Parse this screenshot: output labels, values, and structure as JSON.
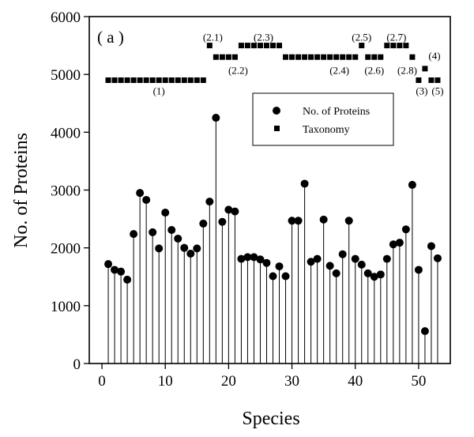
{
  "chart_data": {
    "type": "scatter",
    "panel_label": "( a )",
    "xlabel": "Species",
    "ylabel": "No. of Proteins",
    "xlim": [
      -2,
      55
    ],
    "ylim": [
      0,
      6000
    ],
    "x_ticks": [
      0,
      10,
      20,
      30,
      40,
      50
    ],
    "y_ticks": [
      0,
      1000,
      2000,
      3000,
      4000,
      5000,
      6000
    ],
    "x_tick_labels": [
      "0",
      "10",
      "20",
      "30",
      "40",
      "50"
    ],
    "y_tick_labels": [
      "0",
      "1000",
      "2000",
      "3000",
      "4000",
      "5000",
      "6000"
    ],
    "grid": false,
    "legend_position": "upper-right",
    "series": [
      {
        "name": "No. of Proteins",
        "marker": "circle",
        "style": "stem",
        "x": [
          1,
          2,
          3,
          4,
          5,
          6,
          7,
          8,
          9,
          10,
          11,
          12,
          13,
          14,
          15,
          16,
          17,
          18,
          19,
          20,
          21,
          22,
          23,
          24,
          25,
          26,
          27,
          28,
          29,
          30,
          31,
          32,
          33,
          34,
          35,
          36,
          37,
          38,
          39,
          40,
          41,
          42,
          43,
          44,
          45,
          46,
          47,
          48,
          49,
          50,
          51,
          52,
          53
        ],
        "values": [
          1720,
          1620,
          1590,
          1450,
          2240,
          2950,
          2830,
          2270,
          1990,
          2610,
          2310,
          2160,
          2000,
          1900,
          1990,
          2420,
          2800,
          4250,
          2450,
          2660,
          2630,
          1810,
          1840,
          1840,
          1800,
          1740,
          1510,
          1680,
          1510,
          2470,
          2470,
          3110,
          1760,
          1810,
          2490,
          1690,
          1560,
          1890,
          2470,
          1810,
          1710,
          1560,
          1500,
          1540,
          1810,
          2060,
          2090,
          2320,
          3090,
          1620,
          560,
          2030,
          1820
        ]
      },
      {
        "name": "Taxonomy",
        "marker": "square",
        "x": [
          1,
          2,
          3,
          4,
          5,
          6,
          7,
          8,
          9,
          10,
          11,
          12,
          13,
          14,
          15,
          16,
          17,
          18,
          19,
          20,
          21,
          22,
          23,
          24,
          25,
          26,
          27,
          28,
          29,
          30,
          31,
          32,
          33,
          34,
          35,
          36,
          37,
          38,
          39,
          40,
          41,
          42,
          43,
          44,
          45,
          46,
          47,
          48,
          49,
          50,
          51,
          52,
          53
        ],
        "values": [
          4900,
          4900,
          4900,
          4900,
          4900,
          4900,
          4900,
          4900,
          4900,
          4900,
          4900,
          4900,
          4900,
          4900,
          4900,
          4900,
          5500,
          5300,
          5300,
          5300,
          5300,
          5500,
          5500,
          5500,
          5500,
          5500,
          5500,
          5500,
          5300,
          5300,
          5300,
          5300,
          5300,
          5300,
          5300,
          5300,
          5300,
          5300,
          5300,
          5300,
          5500,
          5300,
          5300,
          5300,
          5500,
          5500,
          5500,
          5500,
          5300,
          4900,
          5100,
          4900,
          4900
        ]
      }
    ],
    "taxonomy_labels": [
      {
        "text": "(1)",
        "x": 9,
        "y": 4720
      },
      {
        "text": "(2.1)",
        "x": 17.5,
        "y": 5650
      },
      {
        "text": "(2.2)",
        "x": 21.5,
        "y": 5080
      },
      {
        "text": "(2.3)",
        "x": 25.5,
        "y": 5650
      },
      {
        "text": "(2.4)",
        "x": 37.5,
        "y": 5080
      },
      {
        "text": "(2.5)",
        "x": 41,
        "y": 5650
      },
      {
        "text": "(2.6)",
        "x": 43,
        "y": 5080
      },
      {
        "text": "(2.7)",
        "x": 46.5,
        "y": 5650
      },
      {
        "text": "(2.8)",
        "x": 48.2,
        "y": 5080
      },
      {
        "text": "(3)",
        "x": 50.5,
        "y": 4720
      },
      {
        "text": "(4)",
        "x": 52.5,
        "y": 5330
      },
      {
        "text": "(5)",
        "x": 53,
        "y": 4720
      }
    ]
  }
}
